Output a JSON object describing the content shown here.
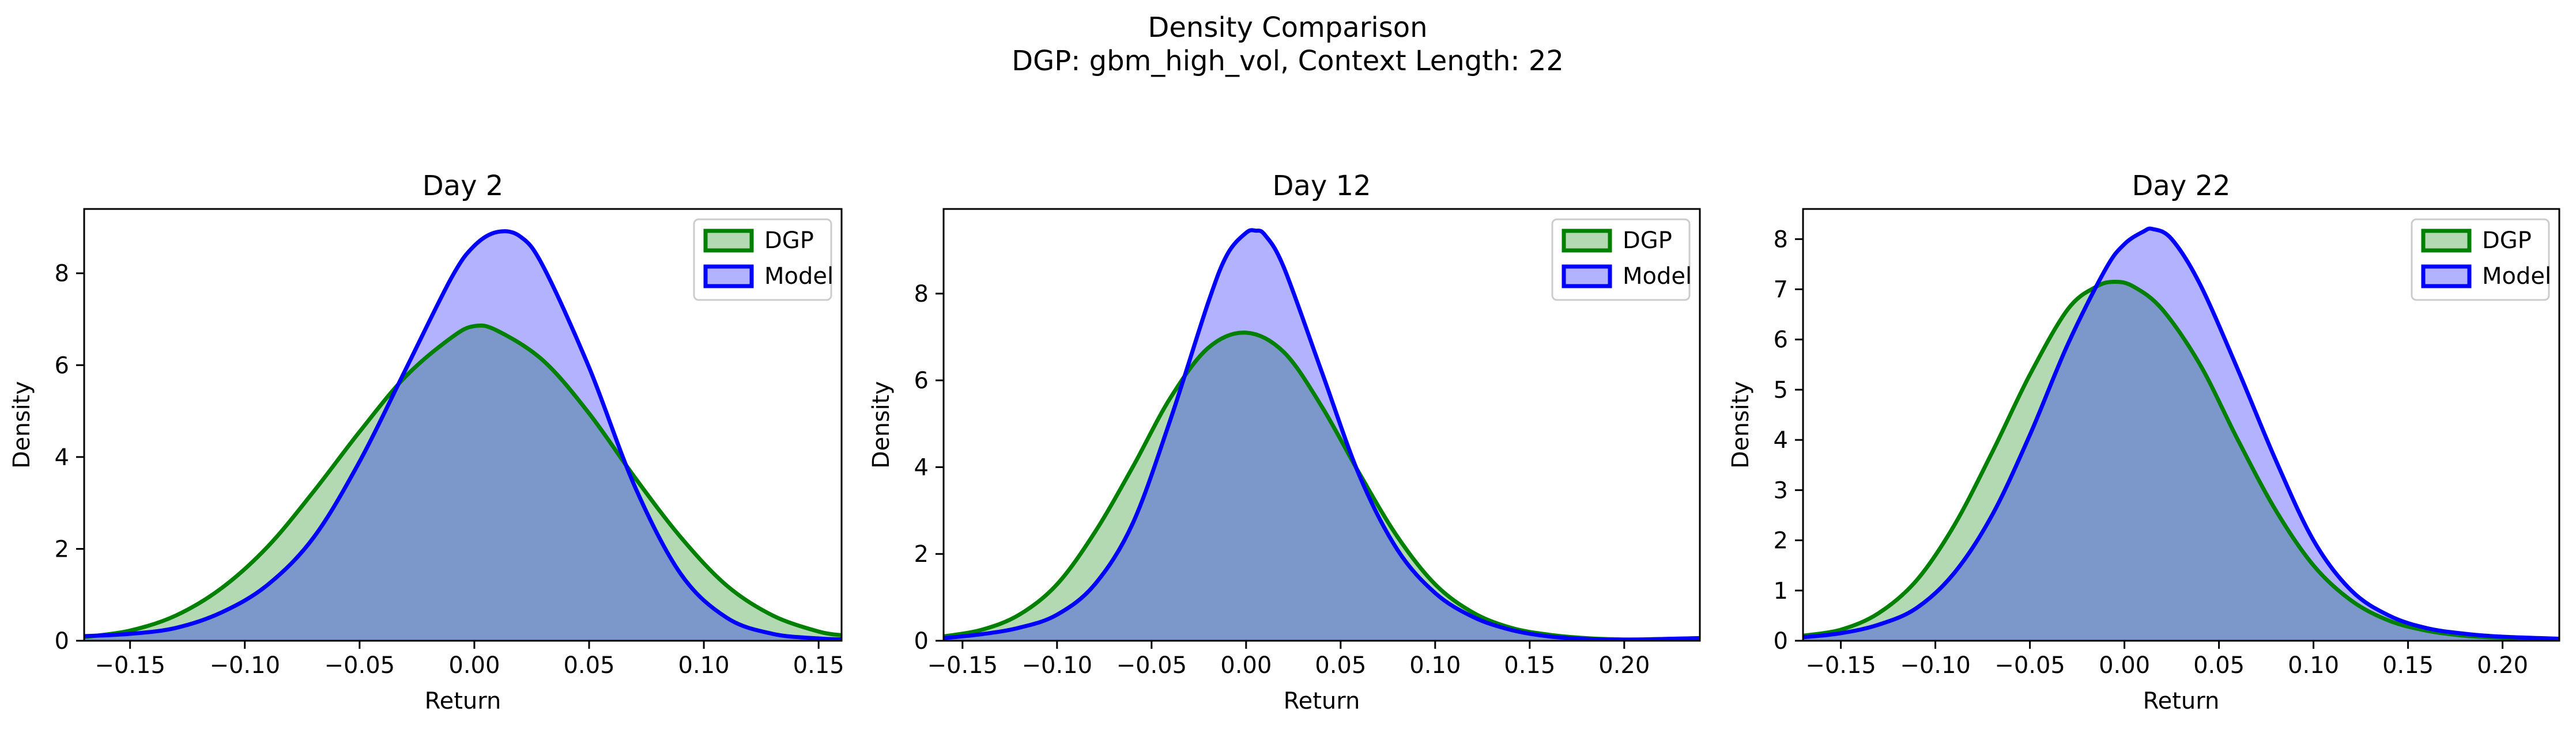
{
  "figure": {
    "title_line1": "Density Comparison",
    "title_line2": "DGP: gbm_high_vol, Context Length: 22"
  },
  "colors": {
    "dgp": "#008000",
    "model": "#0000ff",
    "dgp_fill": "rgba(0,128,0,0.30)",
    "model_fill": "rgba(0,0,255,0.30)",
    "axis": "#000000"
  },
  "chart_data": [
    {
      "type": "area",
      "title": "Day 2",
      "xlabel": "Return",
      "ylabel": "Density",
      "xlim": [
        -0.17,
        0.16
      ],
      "ylim": [
        0,
        9.4
      ],
      "xticks": [
        -0.15,
        -0.1,
        -0.05,
        0.0,
        0.05,
        0.1,
        0.15
      ],
      "xtick_labels": [
        "−0.15",
        "−0.10",
        "−0.05",
        "0.00",
        "0.05",
        "0.10",
        "0.15"
      ],
      "yticks": [
        0,
        2,
        4,
        6,
        8
      ],
      "ytick_labels": [
        "0",
        "2",
        "4",
        "6",
        "8"
      ],
      "legend": "top-right",
      "series": [
        {
          "name": "DGP",
          "x": [
            -0.17,
            -0.15,
            -0.13,
            -0.11,
            -0.09,
            -0.07,
            -0.05,
            -0.03,
            -0.01,
            0.0,
            0.01,
            0.03,
            0.05,
            0.07,
            0.09,
            0.11,
            0.13,
            0.15,
            0.16
          ],
          "y": [
            0.08,
            0.22,
            0.55,
            1.15,
            2.05,
            3.25,
            4.55,
            5.75,
            6.6,
            6.85,
            6.75,
            6.1,
            4.95,
            3.55,
            2.25,
            1.2,
            0.55,
            0.2,
            0.12
          ]
        },
        {
          "name": "Model",
          "x": [
            -0.17,
            -0.15,
            -0.13,
            -0.11,
            -0.09,
            -0.07,
            -0.05,
            -0.03,
            -0.01,
            0.0,
            0.01,
            0.02,
            0.03,
            0.05,
            0.07,
            0.09,
            0.11,
            0.13,
            0.15,
            0.16
          ],
          "y": [
            0.1,
            0.15,
            0.28,
            0.62,
            1.22,
            2.25,
            3.9,
            5.9,
            7.9,
            8.6,
            8.9,
            8.8,
            8.15,
            5.95,
            3.35,
            1.45,
            0.5,
            0.15,
            0.05,
            0.03
          ]
        }
      ]
    },
    {
      "type": "area",
      "title": "Day 12",
      "xlabel": "Return",
      "ylabel": "Density",
      "xlim": [
        -0.16,
        0.24
      ],
      "ylim": [
        0,
        9.95
      ],
      "xticks": [
        -0.15,
        -0.1,
        -0.05,
        0.0,
        0.05,
        0.1,
        0.15,
        0.2
      ],
      "xtick_labels": [
        "−0.15",
        "−0.10",
        "−0.05",
        "0.00",
        "0.05",
        "0.10",
        "0.15",
        "0.20"
      ],
      "yticks": [
        0,
        2,
        4,
        6,
        8
      ],
      "ytick_labels": [
        "0",
        "2",
        "4",
        "6",
        "8"
      ],
      "legend": "top-right",
      "series": [
        {
          "name": "DGP",
          "x": [
            -0.16,
            -0.14,
            -0.12,
            -0.1,
            -0.08,
            -0.06,
            -0.04,
            -0.02,
            0.0,
            0.02,
            0.04,
            0.06,
            0.08,
            0.1,
            0.12,
            0.14,
            0.16,
            0.18,
            0.2,
            0.22,
            0.24
          ],
          "y": [
            0.1,
            0.25,
            0.6,
            1.3,
            2.5,
            4.0,
            5.6,
            6.75,
            7.1,
            6.65,
            5.4,
            3.85,
            2.4,
            1.3,
            0.65,
            0.3,
            0.14,
            0.06,
            0.03,
            0.04,
            0.06
          ]
        },
        {
          "name": "Model",
          "x": [
            -0.16,
            -0.14,
            -0.12,
            -0.1,
            -0.08,
            -0.06,
            -0.04,
            -0.02,
            -0.01,
            0.0,
            0.005,
            0.01,
            0.02,
            0.04,
            0.06,
            0.08,
            0.1,
            0.12,
            0.14,
            0.16,
            0.18,
            0.2,
            0.22,
            0.24
          ],
          "y": [
            0.06,
            0.15,
            0.3,
            0.6,
            1.3,
            2.7,
            5.1,
            7.8,
            8.9,
            9.4,
            9.45,
            9.35,
            8.6,
            6.2,
            3.8,
            2.1,
            1.1,
            0.55,
            0.25,
            0.1,
            0.04,
            0.02,
            0.04,
            0.06
          ]
        }
      ]
    },
    {
      "type": "area",
      "title": "Day 22",
      "xlabel": "Return",
      "ylabel": "Density",
      "xlim": [
        -0.17,
        0.23
      ],
      "ylim": [
        0,
        8.6
      ],
      "xticks": [
        -0.15,
        -0.1,
        -0.05,
        0.0,
        0.05,
        0.1,
        0.15,
        0.2
      ],
      "xtick_labels": [
        "−0.15",
        "−0.10",
        "−0.05",
        "0.00",
        "0.05",
        "0.10",
        "0.15",
        "0.20"
      ],
      "yticks": [
        0,
        1,
        2,
        3,
        4,
        5,
        6,
        7,
        8
      ],
      "ytick_labels": [
        "0",
        "1",
        "2",
        "3",
        "4",
        "5",
        "6",
        "7",
        "8"
      ],
      "legend": "top-right",
      "series": [
        {
          "name": "DGP",
          "x": [
            -0.17,
            -0.15,
            -0.13,
            -0.11,
            -0.09,
            -0.07,
            -0.05,
            -0.03,
            -0.015,
            -0.005,
            0.005,
            0.02,
            0.04,
            0.06,
            0.08,
            0.1,
            0.12,
            0.14,
            0.16,
            0.18,
            0.2,
            0.23
          ],
          "y": [
            0.1,
            0.22,
            0.55,
            1.2,
            2.3,
            3.75,
            5.3,
            6.6,
            7.05,
            7.15,
            7.05,
            6.6,
            5.5,
            4.0,
            2.6,
            1.5,
            0.8,
            0.4,
            0.2,
            0.1,
            0.06,
            0.03
          ]
        },
        {
          "name": "Model",
          "x": [
            -0.17,
            -0.15,
            -0.13,
            -0.11,
            -0.09,
            -0.07,
            -0.05,
            -0.03,
            -0.01,
            0.0,
            0.01,
            0.015,
            0.025,
            0.04,
            0.06,
            0.08,
            0.1,
            0.12,
            0.14,
            0.16,
            0.18,
            0.2,
            0.23
          ],
          "y": [
            0.07,
            0.15,
            0.32,
            0.65,
            1.35,
            2.5,
            4.1,
            5.9,
            7.4,
            7.9,
            8.15,
            8.2,
            8.0,
            7.1,
            5.4,
            3.6,
            2.0,
            1.0,
            0.5,
            0.25,
            0.14,
            0.08,
            0.04
          ]
        }
      ]
    }
  ]
}
